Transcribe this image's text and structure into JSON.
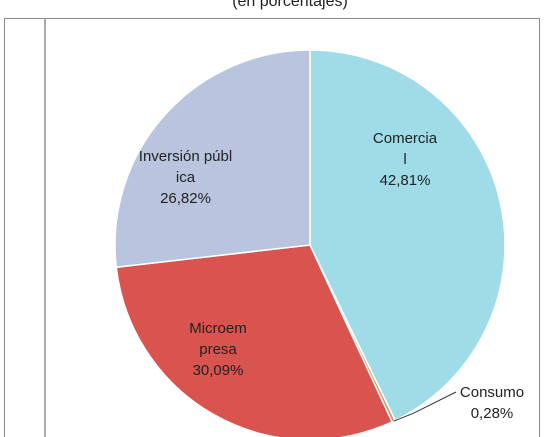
{
  "chart_data": {
    "type": "pie",
    "subtitle": "(en porcentajes)",
    "categories": [
      "Comercial",
      "Consumo",
      "Microempresa",
      "Inversión pública"
    ],
    "values": [
      42.81,
      0.28,
      30.09,
      26.82
    ],
    "value_labels": [
      "42,81%",
      "0,28%",
      "30,09%",
      "26,82%"
    ],
    "colors": [
      "#9fdce8",
      "#c99a6a",
      "#d9534f",
      "#b9c5de"
    ]
  }
}
